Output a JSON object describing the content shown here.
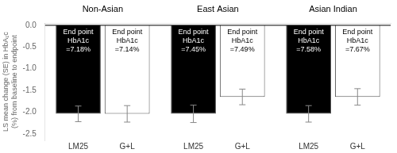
{
  "chart_data": {
    "type": "bar",
    "categories": [
      "Non-Asian",
      "East Asian",
      "Asian Indian"
    ],
    "series": [
      {
        "name": "LM25",
        "color": "black",
        "values": [
          -2.04,
          -2.04,
          -2.04
        ],
        "error_low": [
          0.18,
          0.2,
          0.19
        ],
        "error_high": [
          0.18,
          0.2,
          0.19
        ],
        "annotations": [
          [
            "End point",
            "HbA1c",
            "=7.18%"
          ],
          [
            "End point",
            "HbA1c",
            "=7.45%"
          ],
          [
            "End point",
            "HbA1c",
            "=7.58%"
          ]
        ]
      },
      {
        "name": "G+L",
        "color": "white",
        "values": [
          -2.04,
          -1.65,
          -1.65
        ],
        "error_low": [
          0.19,
          0.18,
          0.19
        ],
        "error_high": [
          0.19,
          0.18,
          0.19
        ],
        "annotations": [
          [
            "End point",
            "HbA1c",
            "=7.14%"
          ],
          [
            "End point",
            "HbA1c",
            "=7.49%"
          ],
          [
            "End point",
            "HbA1c",
            "=7.67%"
          ]
        ]
      }
    ],
    "ylabel": "LS mean change (SE) in HbA₁c\n(%) from baseline to endpoint",
    "ylim": [
      -2.65,
      0.05
    ],
    "yticks": [
      {
        "value": 0,
        "label": "0.0"
      },
      -0.5,
      {
        "value": -1,
        "label": "-1.0"
      },
      -1.5,
      {
        "value": -2,
        "label": "-2.0"
      },
      -2.5
    ],
    "grid": false
  }
}
